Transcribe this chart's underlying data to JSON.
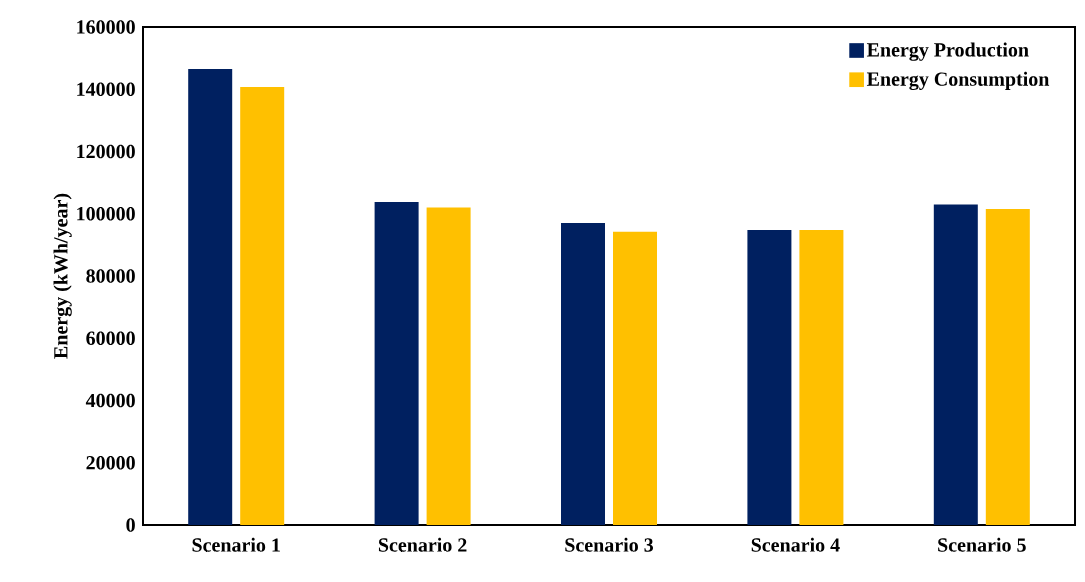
{
  "chart_data": {
    "type": "bar",
    "ylabel": "Energy (kWh/year)",
    "categories": [
      "Scenario 1",
      "Scenario 2",
      "Scenario 3",
      "Scenario 4",
      "Scenario 5"
    ],
    "series": [
      {
        "name": "Energy Production",
        "color": "#002060",
        "values": [
          146500,
          103800,
          97000,
          94800,
          103000
        ]
      },
      {
        "name": "Energy Consumption",
        "color": "#ffc000",
        "values": [
          140700,
          102000,
          94200,
          94800,
          101500
        ]
      }
    ],
    "ylim": [
      0,
      160000
    ],
    "yticks": [
      0,
      20000,
      40000,
      60000,
      80000,
      100000,
      120000,
      140000,
      160000
    ],
    "legend": "top right"
  }
}
